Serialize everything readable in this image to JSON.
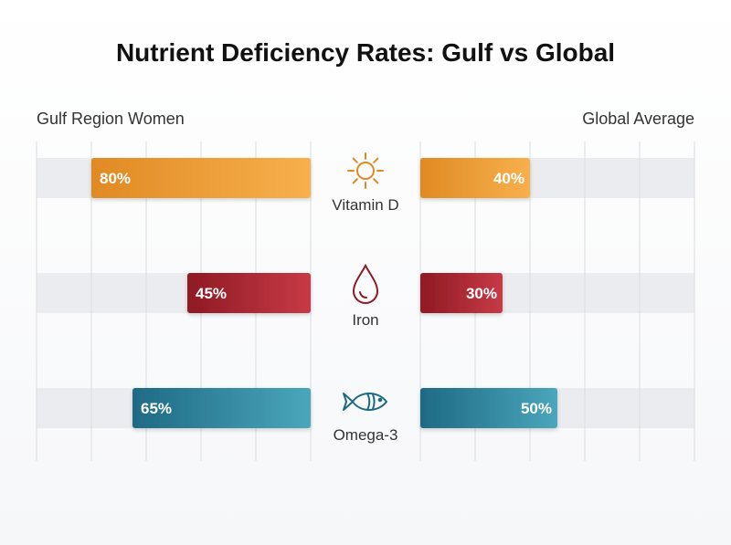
{
  "chart_data": {
    "type": "bar",
    "title": "Nutrient Deficiency Rates: Gulf vs Global",
    "categories": [
      "Vitamin D",
      "Iron",
      "Omega-3"
    ],
    "category_icons": [
      "sun-icon",
      "drop-icon",
      "fish-icon"
    ],
    "series": [
      {
        "name": "Gulf Region Women",
        "values": [
          80,
          45,
          65
        ],
        "labels": [
          "80%",
          "45%",
          "65%"
        ]
      },
      {
        "name": "Global Average",
        "values": [
          40,
          30,
          50
        ],
        "labels": [
          "40%",
          "30%",
          "50%"
        ]
      }
    ],
    "ylim": [
      0,
      100
    ],
    "orientation": "horizontal-butterfly",
    "colors": {
      "Vitamin D": [
        "#e08a24",
        "#f7b04c"
      ],
      "Iron": [
        "#8e1a24",
        "#c73a45"
      ],
      "Omega-3": [
        "#1e6a85",
        "#4aa6bb"
      ],
      "track": "#ebecef",
      "grid": "#dcdde1"
    }
  }
}
